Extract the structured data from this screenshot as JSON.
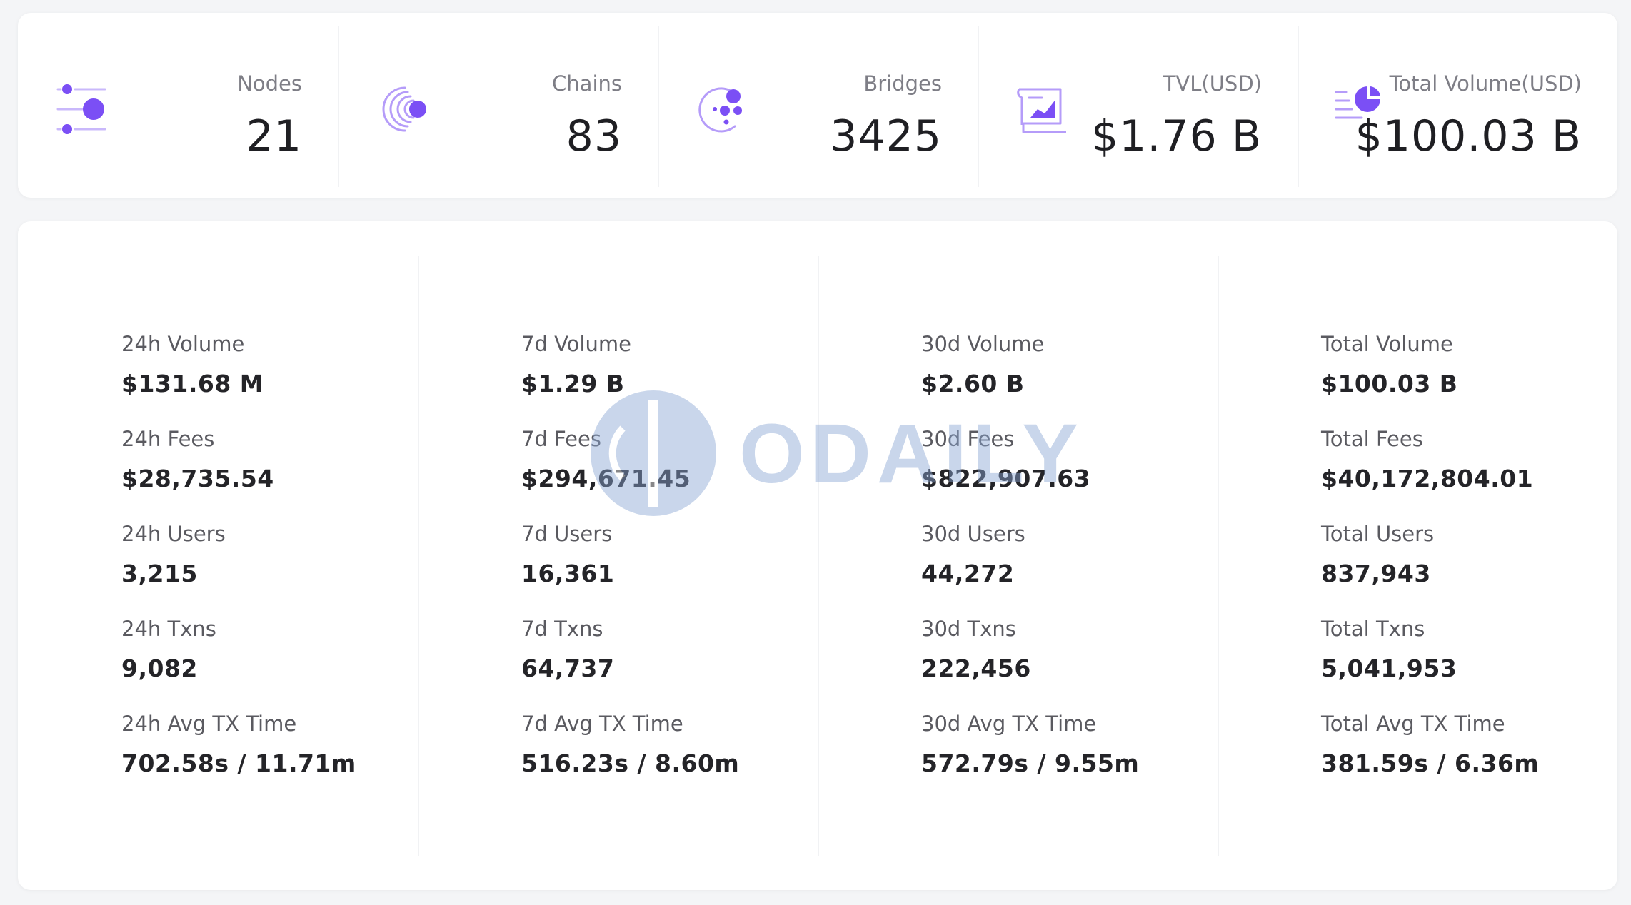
{
  "accent_color": "#7b4ff5",
  "stats": [
    {
      "label": "Nodes",
      "value": "21",
      "icon": "nodes-icon"
    },
    {
      "label": "Chains",
      "value": "83",
      "icon": "chains-icon"
    },
    {
      "label": "Bridges",
      "value": "3425",
      "icon": "bridges-icon"
    },
    {
      "label": "TVL(USD)",
      "value": "$1.76 B",
      "icon": "tvl-icon"
    },
    {
      "label": "Total Volume(USD)",
      "value": "$100.03 B",
      "icon": "total-volume-icon"
    }
  ],
  "columns": [
    {
      "metrics": [
        {
          "label": "24h Volume",
          "value": "$131.68 M"
        },
        {
          "label": "24h Fees",
          "value": "$28,735.54"
        },
        {
          "label": "24h Users",
          "value": "3,215"
        },
        {
          "label": "24h Txns",
          "value": "9,082"
        },
        {
          "label": "24h Avg TX Time",
          "value": "702.58s / 11.71m"
        }
      ]
    },
    {
      "metrics": [
        {
          "label": "7d Volume",
          "value": "$1.29 B"
        },
        {
          "label": "7d Fees",
          "value": "$294,671.45"
        },
        {
          "label": "7d Users",
          "value": "16,361"
        },
        {
          "label": "7d Txns",
          "value": "64,737"
        },
        {
          "label": "7d Avg TX Time",
          "value": "516.23s / 8.60m"
        }
      ]
    },
    {
      "metrics": [
        {
          "label": "30d Volume",
          "value": "$2.60 B"
        },
        {
          "label": "30d Fees",
          "value": "$822,907.63"
        },
        {
          "label": "30d Users",
          "value": "44,272"
        },
        {
          "label": "30d Txns",
          "value": "222,456"
        },
        {
          "label": "30d Avg TX Time",
          "value": "572.79s / 9.55m"
        }
      ]
    },
    {
      "metrics": [
        {
          "label": "Total Volume",
          "value": "$100.03 B"
        },
        {
          "label": "Total Fees",
          "value": "$40,172,804.01"
        },
        {
          "label": "Total Users",
          "value": "837,943"
        },
        {
          "label": "Total Txns",
          "value": "5,041,953"
        },
        {
          "label": "Total Avg TX Time",
          "value": "381.59s / 6.36m"
        }
      ]
    }
  ],
  "watermark": {
    "text": "ODAILY"
  }
}
